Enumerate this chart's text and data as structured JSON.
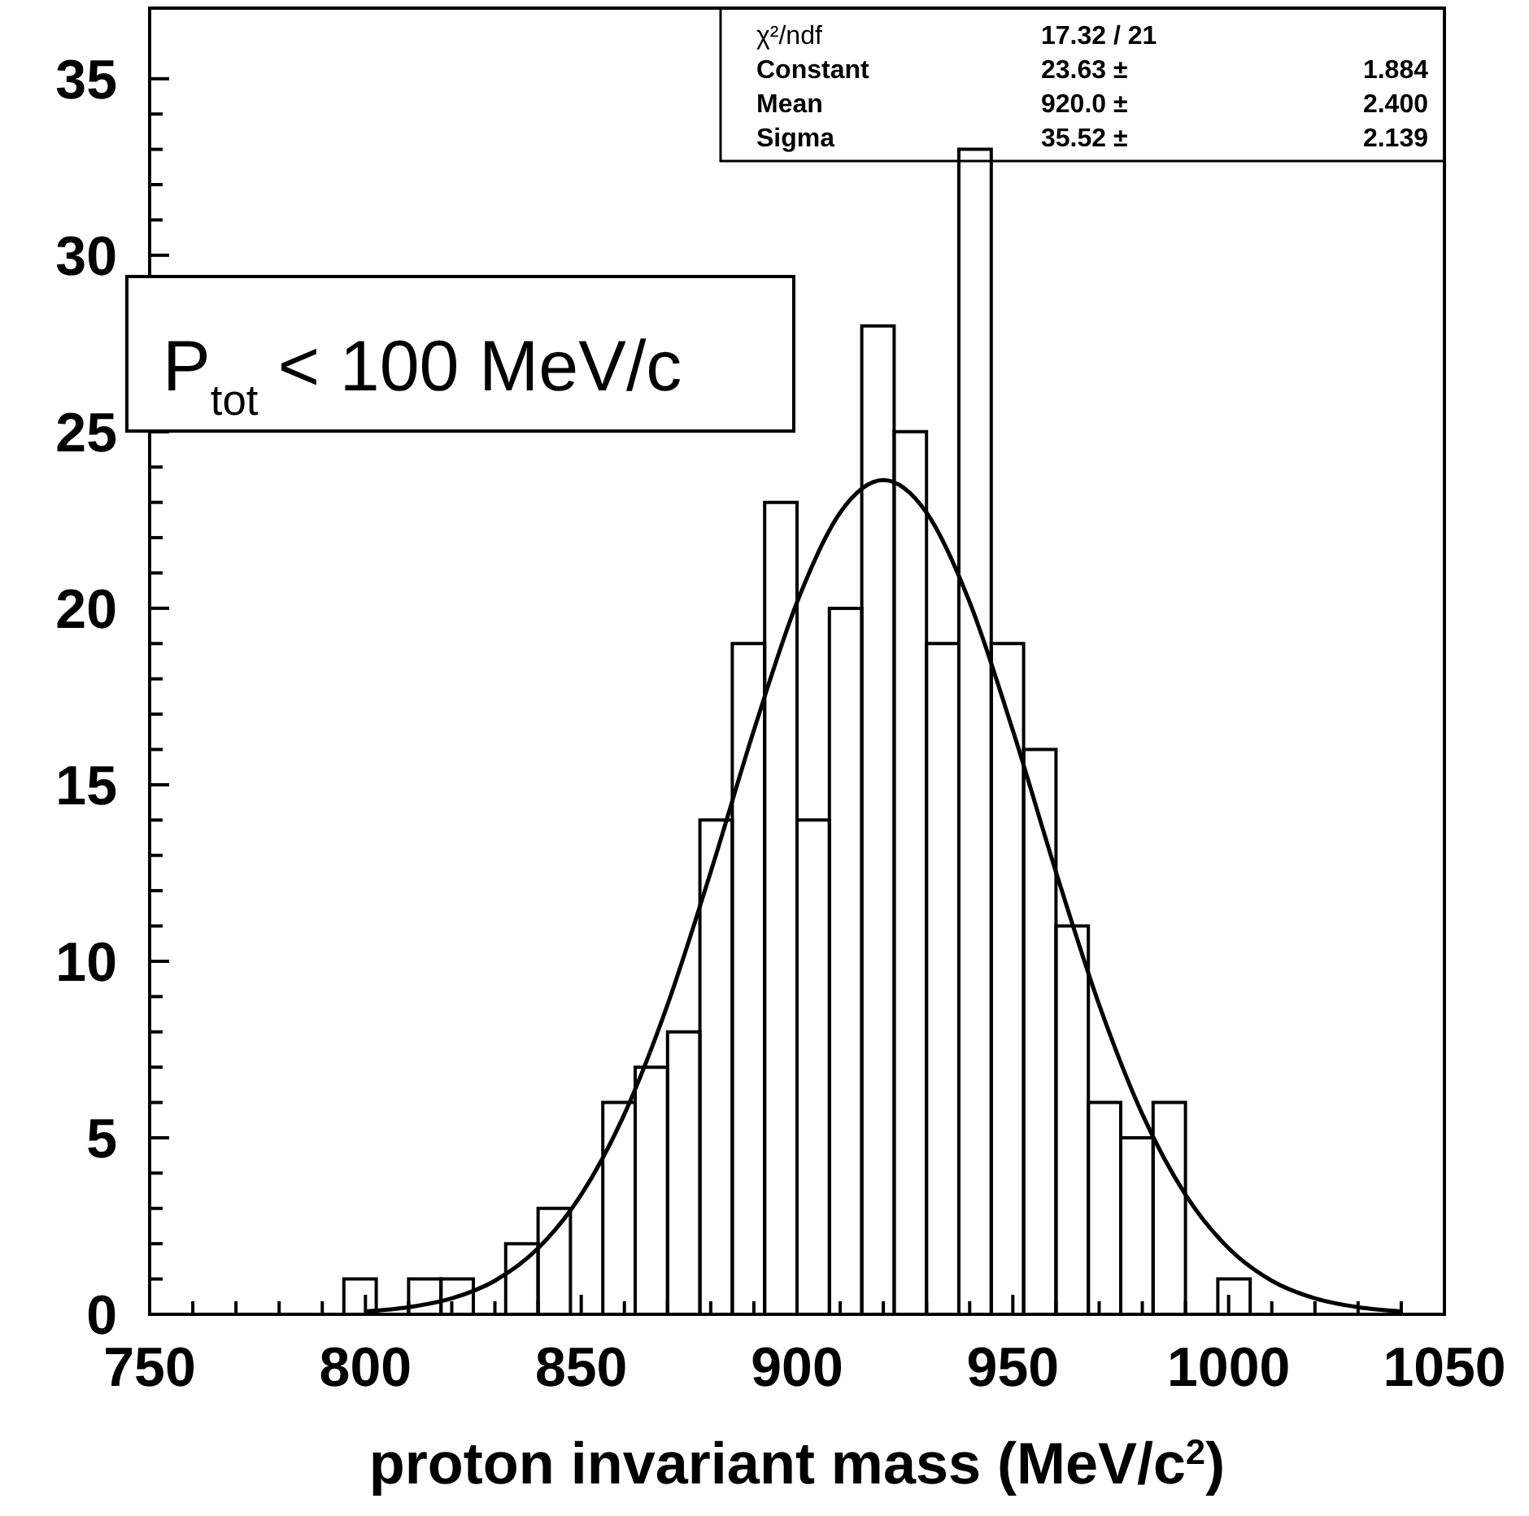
{
  "chart_data": {
    "type": "histogram",
    "xlabel": "proton invariant mass (MeV/c$^{2}$)",
    "bins": [
      750,
      757.5,
      765,
      772.5,
      780,
      787.5,
      795,
      802.5,
      810,
      817.5,
      825,
      832.5,
      840,
      847.5,
      855,
      862.5,
      870,
      877.5,
      885,
      892.5,
      900,
      907.5,
      915,
      922.5,
      930,
      937.5,
      945,
      952.5,
      960,
      967.5,
      975,
      982.5,
      990,
      997.5,
      1005,
      1012.5,
      1020,
      1027.5,
      1035,
      1042.5,
      1050
    ],
    "values": [
      0,
      0,
      0,
      0,
      0,
      0,
      1,
      0,
      1,
      1,
      0,
      2,
      3,
      0,
      6,
      7,
      8,
      14,
      19,
      23,
      14,
      20,
      28,
      25,
      19,
      33,
      19,
      16,
      11,
      6,
      5,
      6,
      0,
      1,
      0,
      0,
      0,
      0,
      0,
      0
    ],
    "color": "#000000",
    "series": [
      {
        "type": "line",
        "color": "#000000",
        "x": [
          800,
          810,
          820,
          830,
          840,
          850,
          860,
          870,
          880,
          890,
          900,
          910,
          920,
          930,
          940,
          950,
          960,
          970,
          980,
          990,
          1000,
          1010,
          1020,
          1030,
          1040
        ],
        "values": [
          0.08,
          0.2,
          0.45,
          0.95,
          1.87,
          3.39,
          5.67,
          8.77,
          12.53,
          16.54,
          20.17,
          22.71,
          23.63,
          22.71,
          20.17,
          16.54,
          12.53,
          8.77,
          5.67,
          3.39,
          1.87,
          0.95,
          0.45,
          0.2,
          0.08
        ]
      }
    ],
    "xlim": [
      750,
      1050
    ],
    "xticks": [
      750,
      {
        "value": 760,
        "label": null
      },
      {
        "value": 770,
        "label": null
      },
      {
        "value": 780,
        "label": null
      },
      {
        "value": 790,
        "label": null
      },
      800,
      {
        "value": 810,
        "label": null
      },
      {
        "value": 820,
        "label": null
      },
      {
        "value": 830,
        "label": null
      },
      {
        "value": 840,
        "label": null
      },
      850,
      {
        "value": 860,
        "label": null
      },
      {
        "value": 870,
        "label": null
      },
      {
        "value": 880,
        "label": null
      },
      {
        "value": 890,
        "label": null
      },
      900,
      {
        "value": 910,
        "label": null
      },
      {
        "value": 920,
        "label": null
      },
      {
        "value": 930,
        "label": null
      },
      {
        "value": 940,
        "label": null
      },
      950,
      {
        "value": 960,
        "label": null
      },
      {
        "value": 970,
        "label": null
      },
      {
        "value": 980,
        "label": null
      },
      {
        "value": 990,
        "label": null
      },
      1000,
      {
        "value": 1010,
        "label": null
      },
      {
        "value": 1020,
        "label": null
      },
      {
        "value": 1030,
        "label": null
      },
      {
        "value": 1040,
        "label": null
      },
      1050
    ],
    "ylim": [
      0,
      37
    ],
    "yticks": [
      0,
      {
        "value": 1,
        "label": null
      },
      {
        "value": 2,
        "label": null
      },
      {
        "value": 3,
        "label": null
      },
      {
        "value": 4,
        "label": null
      },
      5,
      {
        "value": 6,
        "label": null
      },
      {
        "value": 7,
        "label": null
      },
      {
        "value": 8,
        "label": null
      },
      {
        "value": 9,
        "label": null
      },
      10,
      {
        "value": 11,
        "label": null
      },
      {
        "value": 12,
        "label": null
      },
      {
        "value": 13,
        "label": null
      },
      {
        "value": 14,
        "label": null
      },
      15,
      {
        "value": 16,
        "label": null
      },
      {
        "value": 17,
        "label": null
      },
      {
        "value": 18,
        "label": null
      },
      {
        "value": 19,
        "label": null
      },
      20,
      {
        "value": 21,
        "label": null
      },
      {
        "value": 22,
        "label": null
      },
      {
        "value": 23,
        "label": null
      },
      {
        "value": 24,
        "label": null
      },
      25,
      {
        "value": 26,
        "label": null
      },
      {
        "value": 27,
        "label": null
      },
      {
        "value": 28,
        "label": null
      },
      {
        "value": 29,
        "label": null
      },
      30,
      {
        "value": 31,
        "label": null
      },
      {
        "value": 32,
        "label": null
      },
      {
        "value": 33,
        "label": null
      },
      {
        "value": 34,
        "label": null
      },
      35
    ],
    "annotations": [
      "P$_{tot}$ < 100 MeV/c",
      "χ²/ndf",
      "17.32  /  21",
      "Constant",
      "23.63 ±",
      "1.884",
      "Mean",
      "920.0 ±",
      "2.400",
      "Sigma",
      "35.52 ±",
      "2.139"
    ]
  }
}
